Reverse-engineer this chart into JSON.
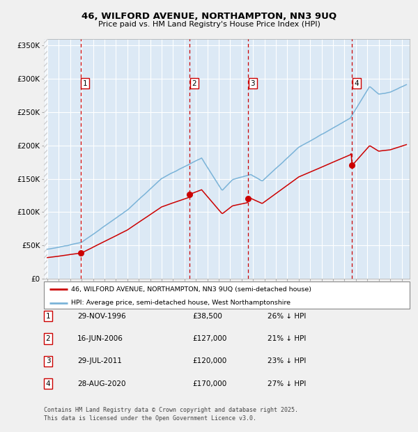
{
  "title_line1": "46, WILFORD AVENUE, NORTHAMPTON, NN3 9UQ",
  "title_line2": "Price paid vs. HM Land Registry's House Price Index (HPI)",
  "legend_red": "46, WILFORD AVENUE, NORTHAMPTON, NN3 9UQ (semi-detached house)",
  "legend_blue": "HPI: Average price, semi-detached house, West Northamptonshire",
  "footer": "Contains HM Land Registry data © Crown copyright and database right 2025.\nThis data is licensed under the Open Government Licence v3.0.",
  "transactions": [
    {
      "num": 1,
      "date_x": 1996.91,
      "price": 38500
    },
    {
      "num": 2,
      "date_x": 2006.46,
      "price": 127000
    },
    {
      "num": 3,
      "date_x": 2011.58,
      "price": 120000
    },
    {
      "num": 4,
      "date_x": 2020.66,
      "price": 170000
    }
  ],
  "table_rows": [
    {
      "num": 1,
      "date_str": "29-NOV-1996",
      "price_str": "£38,500",
      "pct_str": "26% ↓ HPI"
    },
    {
      "num": 2,
      "date_str": "16-JUN-2006",
      "price_str": "£127,000",
      "pct_str": "21% ↓ HPI"
    },
    {
      "num": 3,
      "date_str": "29-JUL-2011",
      "price_str": "£120,000",
      "pct_str": "23% ↓ HPI"
    },
    {
      "num": 4,
      "date_str": "28-AUG-2020",
      "price_str": "£170,000",
      "pct_str": "27% ↓ HPI"
    }
  ],
  "ylim": [
    0,
    360000
  ],
  "yticks": [
    0,
    50000,
    100000,
    150000,
    200000,
    250000,
    300000,
    350000
  ],
  "ytick_labels": [
    "£0",
    "£50K",
    "£100K",
    "£150K",
    "£200K",
    "£250K",
    "£300K",
    "£350K"
  ],
  "fig_bg": "#f0f0f0",
  "chart_bg": "#dce9f5",
  "legend_bg": "#ffffff",
  "red_color": "#cc0000",
  "blue_color": "#7ab3d8",
  "grid_color": "#ffffff",
  "box_edge_color": "#cc0000",
  "xmin": 1993.7,
  "xmax": 2025.7
}
